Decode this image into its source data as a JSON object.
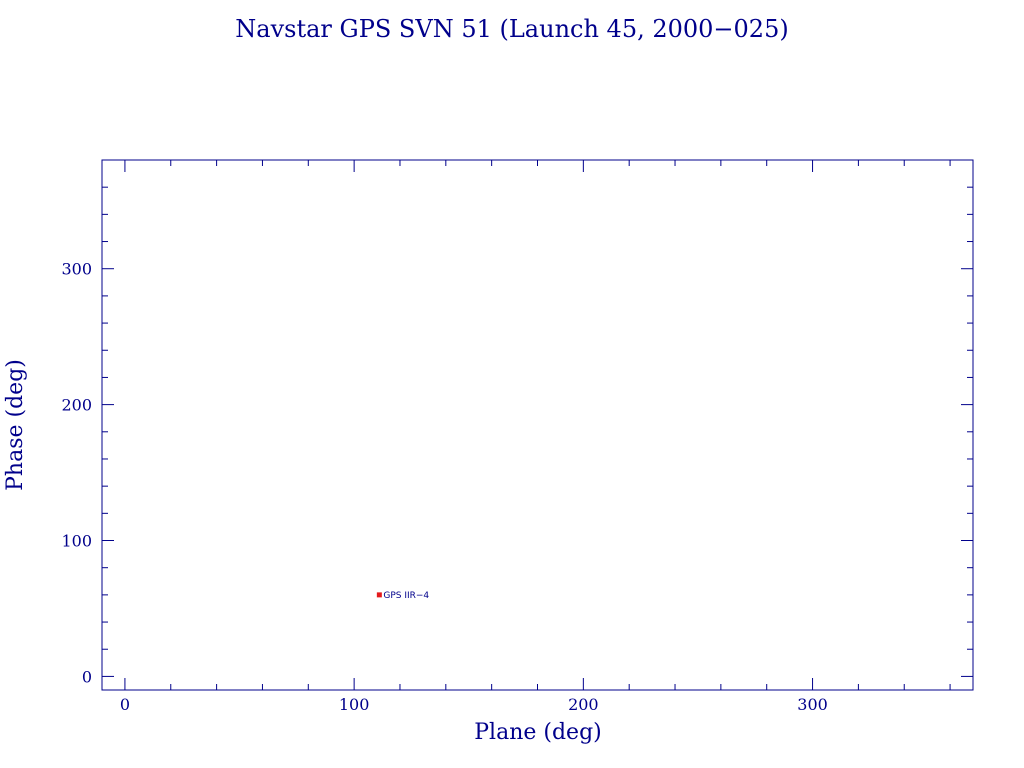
{
  "chart_data": {
    "type": "scatter",
    "title": "Navstar GPS SVN 51 (Launch 45, 2000−025)",
    "xlabel": "Plane (deg)",
    "ylabel": "Phase (deg)",
    "xlim": [
      -10,
      370
    ],
    "ylim": [
      -10,
      380
    ],
    "xticks": [
      0,
      100,
      200,
      300
    ],
    "yticks": [
      0,
      100,
      200,
      300
    ],
    "xtick_labels": [
      "0",
      "100",
      "200",
      "300"
    ],
    "ytick_labels": [
      "0",
      "100",
      "200",
      "300"
    ],
    "minor_tick_step": 20,
    "grid": false,
    "points": [
      {
        "x": 111,
        "y": 60,
        "label": "GPS IIR−4"
      }
    ],
    "colors": {
      "axes": "#00008b",
      "text": "#00008b",
      "marker": "#e41a1c"
    }
  }
}
